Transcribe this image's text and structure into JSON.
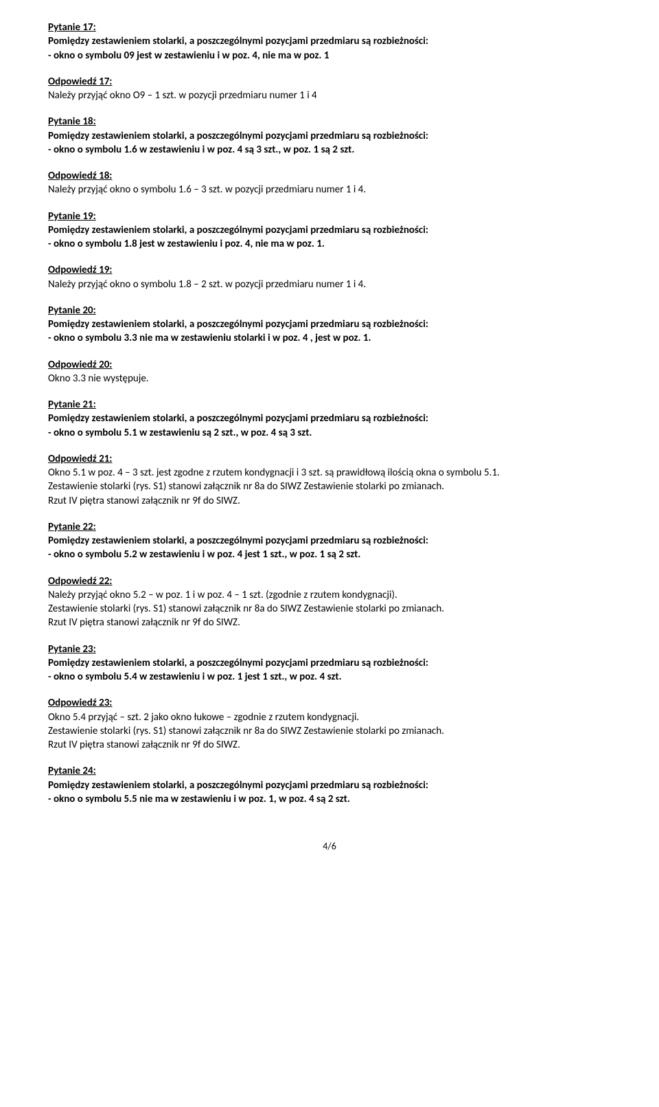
{
  "pageNumber": "4/6",
  "items": [
    {
      "qLabel": "Pytanie 17:",
      "qBody": "Pomiędzy zestawieniem stolarki, a poszczególnymi pozycjami przedmiaru są rozbieżności:\n- okno o symbolu 09 jest w zestawieniu i w poz. 4, nie ma w poz. 1",
      "aLabel": "Odpowiedź 17:",
      "aBody": "Należy przyjąć okno O9 – 1 szt. w pozycji przedmiaru numer  1 i 4"
    },
    {
      "qLabel": "Pytanie 18:",
      "qBody": "Pomiędzy zestawieniem stolarki, a poszczególnymi pozycjami przedmiaru są rozbieżności:\n- okno o symbolu 1.6 w zestawieniu i w poz. 4 są 3 szt., w poz. 1 są 2 szt.",
      "aLabel": "Odpowiedź 18:",
      "aBody": "Należy przyjąć okno o symbolu 1.6 – 3 szt. w pozycji przedmiaru numer 1 i 4."
    },
    {
      "qLabel": "Pytanie 19:",
      "qBody": "Pomiędzy zestawieniem stolarki, a poszczególnymi pozycjami przedmiaru są rozbieżności:\n- okno o symbolu 1.8 jest w zestawieniu i poz. 4, nie ma w poz. 1.",
      "aLabel": "Odpowiedź 19:",
      "aBody": "Należy przyjąć okno o symbolu 1.8 – 2 szt. w pozycji przedmiaru numer 1 i 4."
    },
    {
      "qLabel": "Pytanie 20:",
      "qBody": "Pomiędzy zestawieniem stolarki, a poszczególnymi pozycjami przedmiaru są rozbieżności:\n- okno o symbolu 3.3 nie ma w zestawieniu stolarki i w poz. 4 , jest w poz. 1.",
      "aLabel": "Odpowiedź 20:",
      "aBody": "Okno 3.3 nie występuje."
    },
    {
      "qLabel": "Pytanie 21:",
      "qBody": "Pomiędzy zestawieniem stolarki, a poszczególnymi pozycjami przedmiaru są rozbieżności:\n- okno o symbolu 5.1 w zestawieniu są 2 szt., w poz. 4 są 3 szt.",
      "aLabel": "Odpowiedź 21:",
      "aBody": "Okno 5.1 w poz. 4 – 3 szt. jest zgodne z rzutem kondygnacji i 3 szt. są prawidłową ilością okna o symbolu 5.1.\nZestawienie stolarki (rys. S1) stanowi załącznik nr 8a do SIWZ Zestawienie stolarki po zmianach.\nRzut IV piętra stanowi załącznik nr 9f do SIWZ."
    },
    {
      "qLabel": "Pytanie 22:",
      "qBody": "Pomiędzy zestawieniem stolarki, a poszczególnymi pozycjami przedmiaru są rozbieżności:\n- okno o symbolu 5.2 w zestawieniu i w poz. 4 jest 1 szt., w poz. 1 są 2 szt.",
      "aLabel": "Odpowiedź 22:",
      "aBody": "Należy przyjąć okno 5.2 – w poz. 1 i w poz. 4 – 1 szt. (zgodnie z rzutem kondygnacji).\nZestawienie stolarki (rys. S1) stanowi załącznik nr 8a do SIWZ Zestawienie stolarki po zmianach.\nRzut IV piętra stanowi załącznik nr 9f do SIWZ."
    },
    {
      "qLabel": "Pytanie 23:",
      "qBody": "Pomiędzy zestawieniem stolarki, a poszczególnymi pozycjami przedmiaru są rozbieżności:\n- okno o symbolu 5.4 w zestawieniu i w poz. 1 jest 1 szt., w poz. 4 szt.",
      "aLabel": "Odpowiedź 23:",
      "aBody": "Okno 5.4 przyjąć – szt. 2 jako okno łukowe – zgodnie z rzutem kondygnacji.\nZestawienie stolarki (rys. S1) stanowi załącznik nr 8a do SIWZ Zestawienie stolarki po zmianach.\nRzut IV piętra stanowi załącznik nr 9f do SIWZ."
    },
    {
      "qLabel": "Pytanie 24:",
      "qBody": "Pomiędzy zestawieniem stolarki, a poszczególnymi pozycjami przedmiaru są rozbieżności:\n- okno o symbolu 5.5 nie ma w zestawieniu i w poz. 1, w poz. 4 są 2 szt.",
      "aLabel": "",
      "aBody": ""
    }
  ]
}
